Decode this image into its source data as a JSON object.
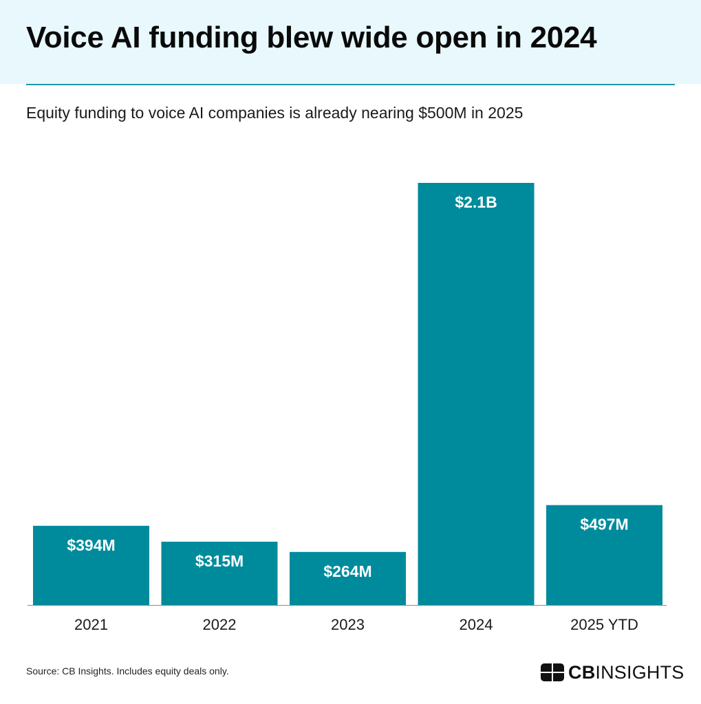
{
  "header": {
    "title": "Voice AI funding blew wide open in 2024",
    "subtitle": "Equity funding to voice AI companies is already nearing $500M in 2025"
  },
  "chart_data": {
    "type": "bar",
    "title": "Voice AI funding blew wide open in 2024",
    "subtitle": "Equity funding to voice AI companies is already nearing $500M in 2025",
    "xlabel": "",
    "ylabel": "",
    "unit": "USD millions",
    "categories": [
      "2021",
      "2022",
      "2023",
      "2024",
      "2025 YTD"
    ],
    "values": [
      394,
      315,
      264,
      2100,
      497
    ],
    "data_labels": [
      "$394M",
      "$315M",
      "$264M",
      "$2.1B",
      "$497M"
    ],
    "ylim": [
      0,
      2100
    ],
    "grid": false,
    "legend": "none",
    "colors": {
      "bar": "#008b9d",
      "label_inside": "#ffffff",
      "label_outside": "#1f97a8",
      "axis": "#888888",
      "tick_text": "#1a1a1a"
    }
  },
  "footer": {
    "source": "Source: CB Insights. Includes equity deals only.",
    "brand_bold": "CB",
    "brand_rest": "INSIGHTS"
  }
}
